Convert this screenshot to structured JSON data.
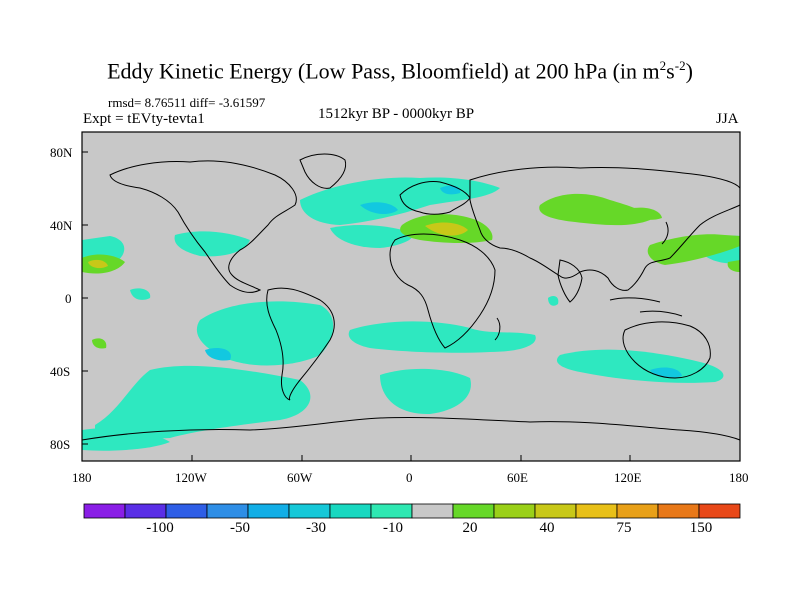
{
  "title": {
    "main": "Eddy Kinetic Energy (Low Pass, Bloomfield) at 200 hPa (in m",
    "sup1": "2",
    "mid": "s",
    "sup2": "-2",
    "end": ")"
  },
  "stats": "rmsd= 8.76511 diff= -3.61597",
  "expt": "Expt = tEVty-tevta1",
  "period": "1512kyr BP - 0000kyr BP",
  "season": "JJA",
  "lat_labels": [
    "80N",
    "40N",
    "0",
    "40S",
    "80S"
  ],
  "lon_labels": [
    "180",
    "120W",
    "60W",
    "0",
    "60E",
    "120E",
    "180"
  ],
  "colorbar": {
    "labels": [
      "-100",
      "-50",
      "-30",
      "-10",
      "20",
      "40",
      "75",
      "150"
    ],
    "colors": [
      "#8a1ee6",
      "#5a2ee6",
      "#2e5ee6",
      "#2e8ee6",
      "#12aee6",
      "#16c8d8",
      "#18d8c0",
      "#2ee8b2",
      "#c8c8c8",
      "#66d828",
      "#9ad018",
      "#c8c818",
      "#e8c018",
      "#e8a018",
      "#e87818",
      "#e84818"
    ]
  },
  "colors": {
    "land_ocean_bg": "#c8c8c8",
    "negative_anomaly": "#2ee8c0",
    "negative_strong": "#12c8e0",
    "positive_anomaly": "#66d828",
    "positive_strong": "#c8c818"
  }
}
